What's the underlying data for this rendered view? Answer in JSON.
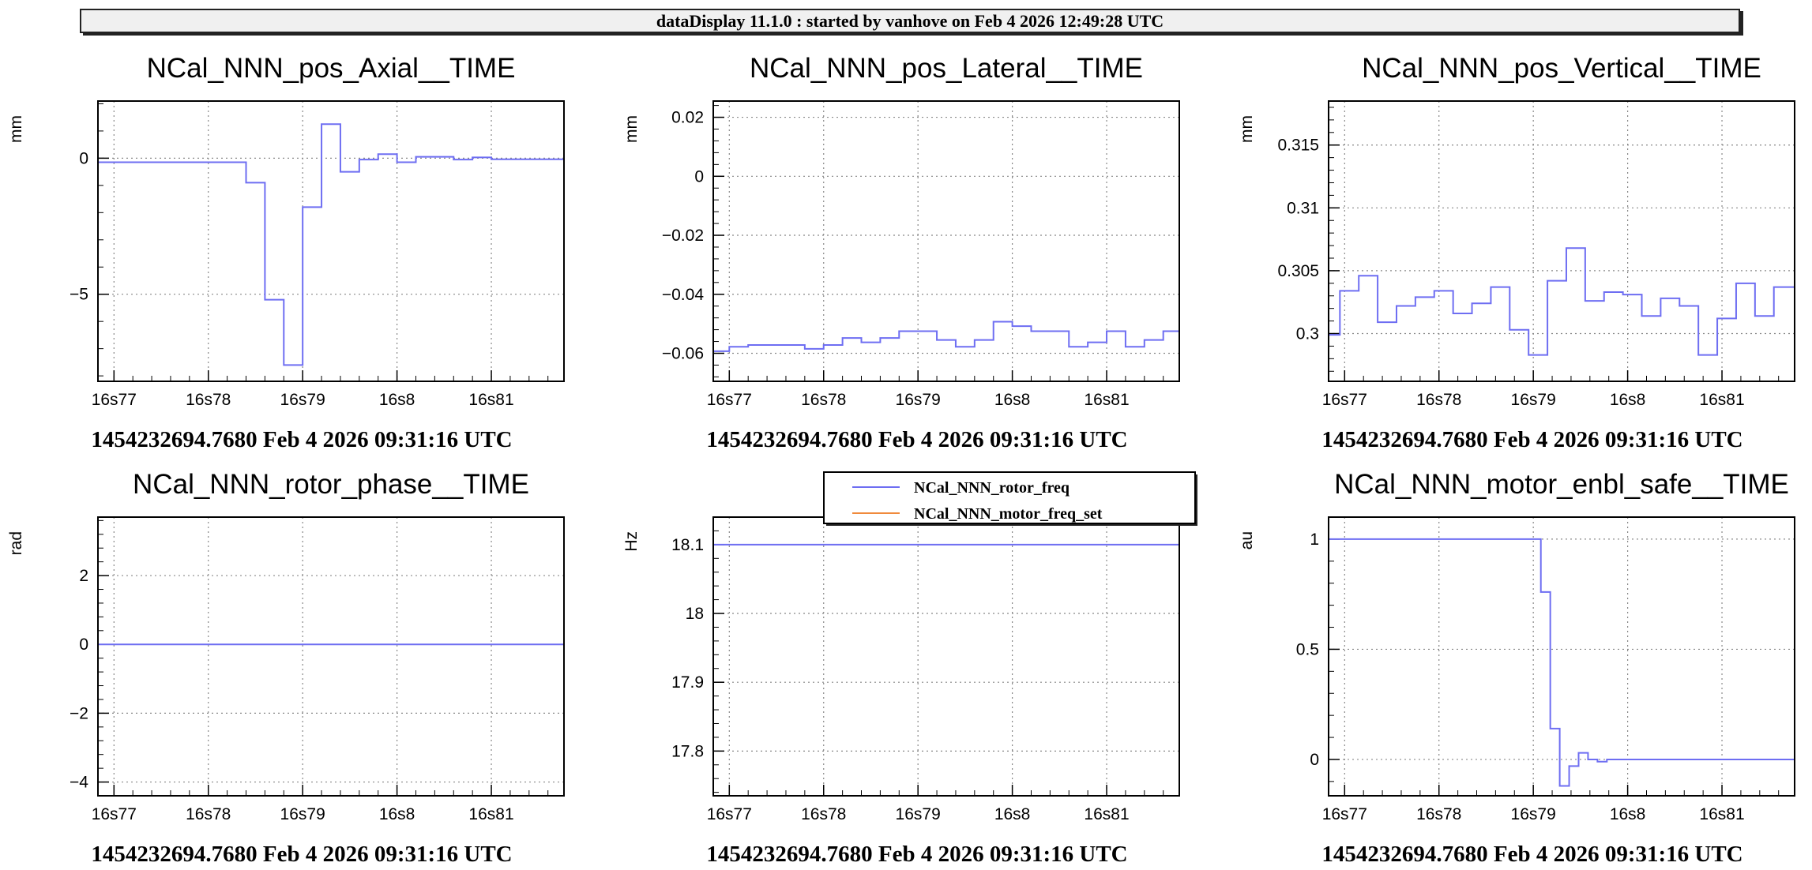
{
  "banner": "dataDisplay 11.1.0 : started by vanhove on Feb  4 2026 12:49:28 UTC",
  "chart_data": [
    {
      "type": "line",
      "title": "NCal_NNN_pos_Axial__TIME",
      "ylabel": "mm",
      "xlabel": "1454232694.7680 Feb 4 2026 09:31:16 UTC",
      "xlim": [
        76.83,
        81.77
      ],
      "ylim": [
        -8.2,
        2.1
      ],
      "grid": true,
      "x_ticks": [
        {
          "value": 77,
          "label": "16s77"
        },
        {
          "value": 78,
          "label": "16s78"
        },
        {
          "value": 79,
          "label": "16s79"
        },
        {
          "value": 80,
          "label": "16s8"
        },
        {
          "value": 81,
          "label": "16s81"
        }
      ],
      "y_ticks": [
        {
          "value": 0,
          "label": "0"
        },
        {
          "value": -5,
          "label": "−5"
        }
      ],
      "series": [
        {
          "color": "#6e6ef2",
          "step": true,
          "x": [
            76.83,
            78.4,
            78.6,
            78.8,
            79.0,
            79.2,
            79.4,
            79.6,
            79.8,
            80.0,
            80.2,
            80.4,
            80.6,
            80.8,
            81.0,
            81.2,
            81.4,
            81.6,
            81.77
          ],
          "y": [
            -0.15,
            -0.9,
            -5.2,
            -7.6,
            -1.8,
            1.25,
            -0.5,
            -0.05,
            0.15,
            -0.15,
            0.05,
            0.05,
            -0.05,
            0.03,
            -0.04,
            -0.04,
            -0.04,
            -0.04,
            -0.04
          ]
        }
      ]
    },
    {
      "type": "line",
      "title": "NCal_NNN_pos_Lateral__TIME",
      "ylabel": "mm",
      "xlabel": "1454232694.7680 Feb 4 2026 09:31:16 UTC",
      "xlim": [
        76.83,
        81.77
      ],
      "ylim": [
        -0.0695,
        0.0255
      ],
      "grid": true,
      "x_ticks": [
        {
          "value": 77,
          "label": "16s77"
        },
        {
          "value": 78,
          "label": "16s78"
        },
        {
          "value": 79,
          "label": "16s79"
        },
        {
          "value": 80,
          "label": "16s8"
        },
        {
          "value": 81,
          "label": "16s81"
        }
      ],
      "y_ticks": [
        {
          "value": 0.02,
          "label": "0.02"
        },
        {
          "value": 0,
          "label": "0"
        },
        {
          "value": -0.02,
          "label": "−0.02"
        },
        {
          "value": -0.04,
          "label": "−0.04"
        },
        {
          "value": -0.06,
          "label": "−0.06"
        }
      ],
      "series": [
        {
          "color": "#6e6ef2",
          "step": true,
          "x": [
            76.83,
            77.0,
            77.2,
            77.4,
            77.6,
            77.8,
            78.0,
            78.2,
            78.4,
            78.6,
            78.8,
            79.0,
            79.2,
            79.4,
            79.6,
            79.8,
            80.0,
            80.2,
            80.4,
            80.6,
            80.8,
            81.0,
            81.2,
            81.4,
            81.6,
            81.77
          ],
          "y": [
            -0.0593,
            -0.0578,
            -0.0572,
            -0.0572,
            -0.0572,
            -0.0585,
            -0.0572,
            -0.0548,
            -0.0563,
            -0.0548,
            -0.0525,
            -0.0525,
            -0.0555,
            -0.0578,
            -0.0555,
            -0.0493,
            -0.0508,
            -0.0525,
            -0.0525,
            -0.0578,
            -0.0563,
            -0.0525,
            -0.0578,
            -0.0555,
            -0.0525,
            -0.0525
          ]
        }
      ]
    },
    {
      "type": "line",
      "title": "NCal_NNN_pos_Vertical__TIME",
      "ylabel": "mm",
      "xlabel": "1454232694.7680 Feb 4 2026 09:31:16 UTC",
      "xlim": [
        76.83,
        81.77
      ],
      "ylim": [
        0.2962,
        0.3185
      ],
      "grid": true,
      "x_ticks": [
        {
          "value": 77,
          "label": "16s77"
        },
        {
          "value": 78,
          "label": "16s78"
        },
        {
          "value": 79,
          "label": "16s79"
        },
        {
          "value": 80,
          "label": "16s8"
        },
        {
          "value": 81,
          "label": "16s81"
        }
      ],
      "y_ticks": [
        {
          "value": 0.315,
          "label": "0.315"
        },
        {
          "value": 0.31,
          "label": "0.31"
        },
        {
          "value": 0.305,
          "label": "0.305"
        },
        {
          "value": 0.3,
          "label": "0.3"
        }
      ],
      "series": [
        {
          "color": "#6e6ef2",
          "step": true,
          "x": [
            76.83,
            76.95,
            77.15,
            77.35,
            77.55,
            77.75,
            77.95,
            78.15,
            78.35,
            78.55,
            78.75,
            78.95,
            79.15,
            79.35,
            79.55,
            79.75,
            79.95,
            80.15,
            80.35,
            80.55,
            80.75,
            80.95,
            81.15,
            81.35,
            81.55,
            81.77
          ],
          "y": [
            0.2999,
            0.3034,
            0.3046,
            0.3009,
            0.3022,
            0.3029,
            0.3034,
            0.3016,
            0.3024,
            0.3037,
            0.3003,
            0.2983,
            0.3042,
            0.3068,
            0.3026,
            0.3033,
            0.3031,
            0.3014,
            0.3028,
            0.3022,
            0.2983,
            0.3012,
            0.304,
            0.3014,
            0.3037,
            0.3037
          ]
        }
      ]
    },
    {
      "type": "line",
      "title": "NCal_NNN_rotor_phase__TIME",
      "ylabel": "rad",
      "xlabel": "1454232694.7680 Feb 4 2026 09:31:16 UTC",
      "xlim": [
        76.83,
        81.77
      ],
      "ylim": [
        -4.4,
        3.7
      ],
      "grid": true,
      "x_ticks": [
        {
          "value": 77,
          "label": "16s77"
        },
        {
          "value": 78,
          "label": "16s78"
        },
        {
          "value": 79,
          "label": "16s79"
        },
        {
          "value": 80,
          "label": "16s8"
        },
        {
          "value": 81,
          "label": "16s81"
        }
      ],
      "y_ticks": [
        {
          "value": 2,
          "label": "2"
        },
        {
          "value": 0,
          "label": "0"
        },
        {
          "value": -2,
          "label": "−2"
        },
        {
          "value": -4,
          "label": "−4"
        }
      ],
      "series": [
        {
          "color": "#6e6ef2",
          "step": true,
          "x": [
            76.83,
            81.77
          ],
          "y": [
            0,
            0
          ]
        }
      ]
    },
    {
      "type": "line",
      "title": "",
      "ylabel": "Hz",
      "xlabel": "1454232694.7680 Feb 4 2026 09:31:16 UTC",
      "xlim": [
        76.83,
        81.77
      ],
      "ylim": [
        17.735,
        18.14
      ],
      "grid": true,
      "legend": "top-center",
      "x_ticks": [
        {
          "value": 77,
          "label": "16s77"
        },
        {
          "value": 78,
          "label": "16s78"
        },
        {
          "value": 79,
          "label": "16s79"
        },
        {
          "value": 80,
          "label": "16s8"
        },
        {
          "value": 81,
          "label": "16s81"
        }
      ],
      "y_ticks": [
        {
          "value": 18.1,
          "label": "18.1"
        },
        {
          "value": 18.0,
          "label": "18"
        },
        {
          "value": 17.9,
          "label": "17.9"
        },
        {
          "value": 17.8,
          "label": "17.8"
        }
      ],
      "series": [
        {
          "name": "NCal_NNN_rotor_freq",
          "color": "#6e6ef2",
          "step": true,
          "x": [
            76.83,
            81.77
          ],
          "y": [
            18.1,
            18.1
          ]
        },
        {
          "name": "NCal_NNN_motor_freq_set",
          "color": "#f08a3c",
          "step": true,
          "x": [],
          "y": []
        }
      ]
    },
    {
      "type": "line",
      "title": "NCal_NNN_motor_enbl_safe__TIME",
      "ylabel": "au",
      "xlabel": "1454232694.7680 Feb 4 2026 09:31:16 UTC",
      "xlim": [
        76.83,
        81.77
      ],
      "ylim": [
        -0.165,
        1.1
      ],
      "grid": true,
      "x_ticks": [
        {
          "value": 77,
          "label": "16s77"
        },
        {
          "value": 78,
          "label": "16s78"
        },
        {
          "value": 79,
          "label": "16s79"
        },
        {
          "value": 80,
          "label": "16s8"
        },
        {
          "value": 81,
          "label": "16s81"
        }
      ],
      "y_ticks": [
        {
          "value": 1,
          "label": "1"
        },
        {
          "value": 0.5,
          "label": "0.5"
        },
        {
          "value": 0,
          "label": "0"
        }
      ],
      "series": [
        {
          "color": "#6e6ef2",
          "step": true,
          "x": [
            76.83,
            79.08,
            79.18,
            79.28,
            79.38,
            79.48,
            79.58,
            79.68,
            79.78,
            81.77
          ],
          "y": [
            1.0,
            0.76,
            0.14,
            -0.12,
            -0.03,
            0.03,
            0.0,
            -0.01,
            0.0,
            0.0
          ]
        }
      ]
    }
  ]
}
